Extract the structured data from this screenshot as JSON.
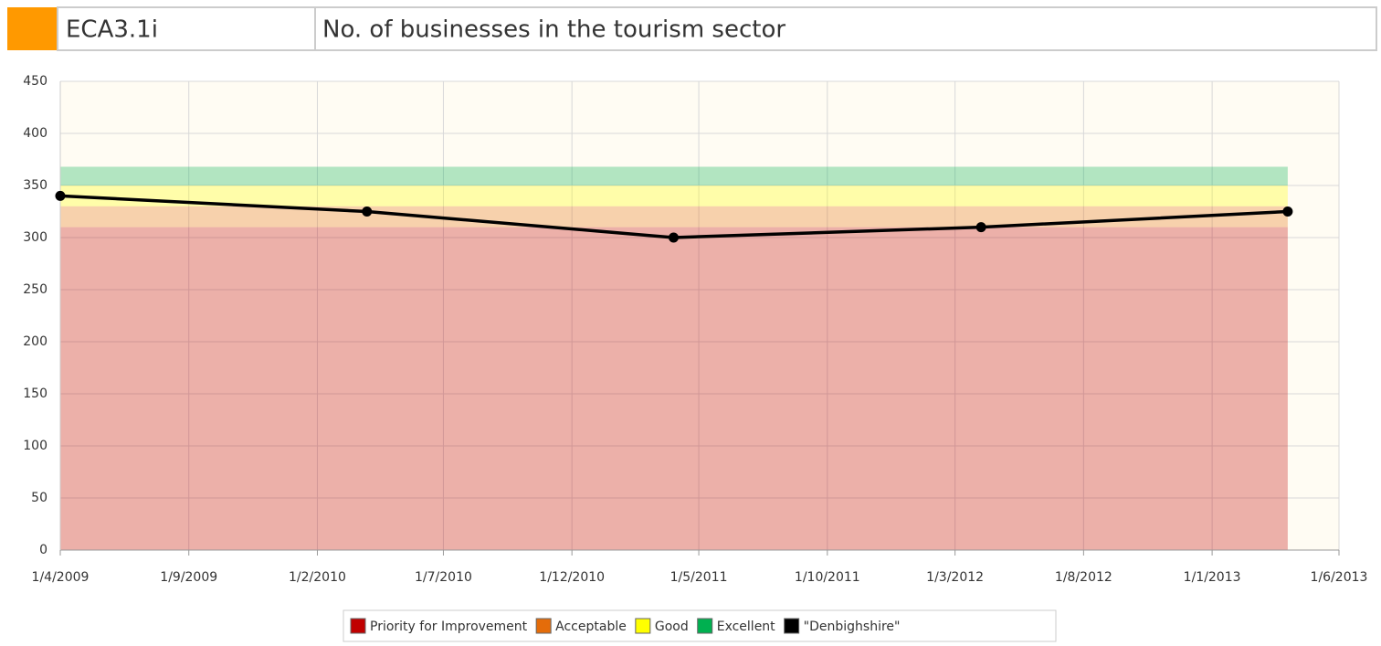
{
  "header": {
    "code": "ECA3.1i",
    "title": "No. of businesses in the tourism sector",
    "color": "#ff9900"
  },
  "chart_data": {
    "type": "line",
    "x": [
      "2009-04-01",
      "2010-04-01",
      "2011-04-01",
      "2012-04-01",
      "2013-04-01"
    ],
    "series": [
      {
        "name": "Priority for Improvement",
        "color": "#c00000",
        "stack": true,
        "values": [
          310,
          310,
          310,
          310,
          310
        ]
      },
      {
        "name": "Acceptable",
        "color": "#e46c0a",
        "stack": true,
        "values": [
          20,
          20,
          20,
          20,
          20
        ]
      },
      {
        "name": "Good",
        "color": "#ffff00",
        "stack": true,
        "values": [
          20,
          20,
          20,
          20,
          20
        ]
      },
      {
        "name": "Excellent",
        "color": "#00b050",
        "stack": true,
        "values": [
          18,
          18,
          18,
          18,
          18
        ]
      },
      {
        "name": "\"Denbighshire\"",
        "color": "#000000",
        "values": [
          340,
          325,
          300,
          310,
          325
        ]
      }
    ],
    "ylim": [
      0,
      450
    ],
    "yticks": [
      0,
      50,
      100,
      150,
      200,
      250,
      300,
      350,
      400,
      450
    ],
    "xlim": [
      "2009-04-01",
      "2013-06-01"
    ],
    "xticks": [
      {
        "value": "2009-04-01",
        "label": "1/4/2009"
      },
      {
        "value": "2009-09-01",
        "label": "1/9/2009"
      },
      {
        "value": "2010-02-01",
        "label": "1/2/2010"
      },
      {
        "value": "2010-07-01",
        "label": "1/7/2010"
      },
      {
        "value": "2010-12-01",
        "label": "1/12/2010"
      },
      {
        "value": "2011-05-01",
        "label": "1/5/2011"
      },
      {
        "value": "2011-10-01",
        "label": "1/10/2011"
      },
      {
        "value": "2012-03-01",
        "label": "1/3/2012"
      },
      {
        "value": "2012-08-01",
        "label": "1/8/2012"
      },
      {
        "value": "2013-01-01",
        "label": "1/1/2013"
      },
      {
        "value": "2013-06-01",
        "label": "1/6/2013"
      }
    ],
    "grid": true,
    "legend": "bottom"
  }
}
